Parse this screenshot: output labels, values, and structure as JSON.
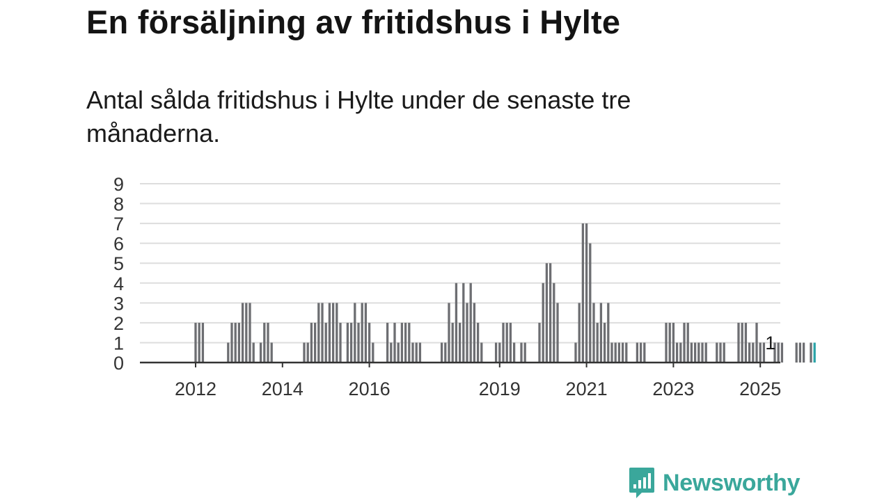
{
  "title": "En försäljning av fritidshus i Hylte",
  "subtitle": "Antal sålda fritidshus i Hylte under de senaste tre månaderna.",
  "logo": {
    "text": "Newsworthy",
    "icon": "newsworthy-bar-chart-bubble-icon",
    "color": "#3aa79b"
  },
  "colors": {
    "bar": "#6d6e72",
    "highlight": "#2aa3a7",
    "grid": "#dddddd",
    "axis": "#333333"
  },
  "chart_data": {
    "type": "bar",
    "xlabel": "",
    "ylabel": "",
    "ylim": [
      0,
      9
    ],
    "yticks": [
      "0",
      "1",
      "2",
      "3",
      "4",
      "5",
      "6",
      "7",
      "8",
      "9"
    ],
    "xticks": [
      {
        "label": "2012",
        "date": "2012-01"
      },
      {
        "label": "2014",
        "date": "2014-01"
      },
      {
        "label": "2016",
        "date": "2016-01"
      },
      {
        "label": "2019",
        "date": "2019-01"
      },
      {
        "label": "2021",
        "date": "2021-01"
      },
      {
        "label": "2023",
        "date": "2023-01"
      },
      {
        "label": "2025",
        "date": "2025-01"
      }
    ],
    "grid": true,
    "start": "2011-01",
    "end": "2025-04",
    "values": [
      0,
      0,
      0,
      0,
      0,
      0,
      0,
      0,
      0,
      0,
      0,
      0,
      2,
      2,
      2,
      0,
      0,
      0,
      0,
      0,
      0,
      1,
      2,
      2,
      2,
      3,
      3,
      3,
      1,
      0,
      1,
      2,
      2,
      1,
      0,
      0,
      0,
      0,
      0,
      0,
      0,
      0,
      1,
      1,
      2,
      2,
      3,
      3,
      2,
      3,
      3,
      3,
      2,
      0,
      2,
      2,
      3,
      2,
      3,
      3,
      2,
      1,
      0,
      0,
      0,
      2,
      1,
      2,
      1,
      2,
      2,
      2,
      1,
      1,
      1,
      0,
      0,
      0,
      0,
      0,
      1,
      1,
      3,
      2,
      4,
      2,
      4,
      3,
      4,
      3,
      2,
      1,
      0,
      0,
      0,
      1,
      1,
      2,
      2,
      2,
      1,
      0,
      1,
      1,
      0,
      0,
      0,
      2,
      4,
      5,
      5,
      4,
      3,
      0,
      0,
      0,
      0,
      1,
      3,
      7,
      7,
      6,
      3,
      2,
      3,
      2,
      3,
      1,
      1,
      1,
      1,
      1,
      0,
      0,
      1,
      1,
      1,
      0,
      0,
      0,
      0,
      0,
      2,
      2,
      2,
      1,
      1,
      2,
      2,
      1,
      1,
      1,
      1,
      1,
      0,
      0,
      1,
      1,
      1,
      0,
      0,
      0,
      2,
      2,
      2,
      1,
      1,
      2,
      1,
      1,
      0,
      0,
      1,
      1,
      1,
      0,
      0,
      0,
      1,
      1,
      1,
      0,
      1,
      1
    ],
    "highlight_last": true,
    "annotation": {
      "text": "1",
      "date": "2025-04"
    }
  }
}
